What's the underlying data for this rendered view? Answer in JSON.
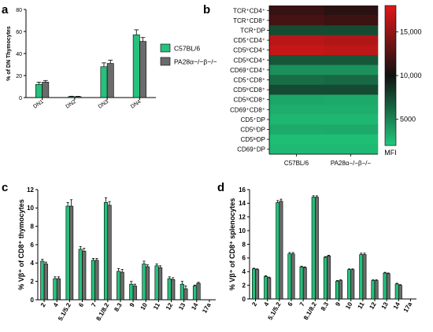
{
  "panels": {
    "a": "a",
    "b": "b",
    "c": "c",
    "d": "d"
  },
  "colors": {
    "c57": "#27c07c",
    "pa28": "#6b6b6b",
    "heat_low": "#1fc97c",
    "heat_mid": "#111111",
    "heat_high": "#e01818"
  },
  "chart_data": [
    {
      "id": "a",
      "type": "bar",
      "ylabel": "% of DN Thymocytes",
      "ylim": [
        0,
        80
      ],
      "yticks": [
        0,
        20,
        40,
        60,
        80
      ],
      "categories": [
        "DN1",
        "DN2",
        "DN3",
        "DN4"
      ],
      "series": [
        {
          "name": "C57BL/6",
          "values": [
            12,
            0.8,
            28,
            57
          ],
          "errors": [
            2,
            0.4,
            3.5,
            4.5
          ]
        },
        {
          "name": "PA28α−/−β−/−",
          "values": [
            14,
            0.8,
            31,
            51
          ],
          "errors": [
            1.5,
            0.3,
            3,
            3.5
          ]
        }
      ],
      "legend": "right"
    },
    {
      "id": "b",
      "type": "heatmap",
      "rows": [
        "TCR⁺CD4⁺",
        "TCR⁺CD8⁺",
        "TCR⁺DP",
        "CD5⁺CD4⁺",
        "CD5ʰⁱCD4⁺",
        "CD5ˡᵒCD4⁺",
        "CD69⁺CD4⁺",
        "CD5⁺CD8⁺",
        "CD5ʰⁱCD8⁺",
        "CD5ˡᵒCD8⁺",
        "CD69⁺CD8⁺",
        "CD5⁺DP",
        "CD5ʰⁱDP",
        "CD5ˡᵒDP",
        "CD69⁺DP"
      ],
      "columns": [
        "C57BL/6",
        "PA28α−/−β−/−"
      ],
      "values": [
        [
          11500,
          11000
        ],
        [
          12000,
          11700
        ],
        [
          7500,
          7500
        ],
        [
          16500,
          16200
        ],
        [
          17000,
          16700
        ],
        [
          7000,
          7000
        ],
        [
          4500,
          4500
        ],
        [
          6000,
          6200
        ],
        [
          7500,
          7500
        ],
        [
          3500,
          3400
        ],
        [
          3200,
          3200
        ],
        [
          2800,
          2800
        ],
        [
          3300,
          3400
        ],
        [
          2500,
          2500
        ],
        [
          2700,
          2700
        ]
      ],
      "colorbar": {
        "min": 2000,
        "max": 18000,
        "ticks": [
          5000,
          10000,
          15000
        ],
        "tick_labels": [
          "5000",
          "10,000",
          "15,000"
        ],
        "label": "MFI"
      }
    },
    {
      "id": "c",
      "type": "bar",
      "ylabel": "% Vβ⁺ of CD8⁺ thymocytes",
      "ylim": [
        0,
        12
      ],
      "yticks": [
        0,
        2,
        4,
        6,
        8,
        10,
        12
      ],
      "categories": [
        "2",
        "4",
        "5.1/5.2",
        "6",
        "7",
        "8.1/8.2",
        "8.3",
        "9",
        "10",
        "11",
        "12",
        "13",
        "14",
        "17a"
      ],
      "series": [
        {
          "name": "C57BL/6",
          "values": [
            4.2,
            2.3,
            10.2,
            5.5,
            4.3,
            10.6,
            3.1,
            1.7,
            3.9,
            3.7,
            2.3,
            1.7,
            1.5,
            0
          ],
          "errors": [
            0.2,
            0.2,
            0.4,
            0.3,
            0.2,
            0.5,
            0.3,
            0.3,
            0.3,
            0.2,
            0.2,
            0.3,
            0.1,
            0
          ]
        },
        {
          "name": "PA28α−/−β−/−",
          "values": [
            3.9,
            2.3,
            10.2,
            5.3,
            4.3,
            10.3,
            3.0,
            1.5,
            3.6,
            3.5,
            2.2,
            1.2,
            1.8,
            0
          ],
          "errors": [
            0.2,
            0.2,
            0.7,
            0.3,
            0.2,
            0.4,
            0.3,
            0.2,
            0.2,
            0.2,
            0.2,
            0.3,
            0.1,
            0
          ]
        }
      ]
    },
    {
      "id": "d",
      "type": "bar",
      "ylabel": "% Vβ⁺ of CD8⁺ splenocytes",
      "ylim": [
        0,
        16
      ],
      "yticks": [
        0,
        2,
        4,
        6,
        8,
        10,
        12,
        14,
        16
      ],
      "categories": [
        "2",
        "4",
        "5.1/5.2",
        "6",
        "7",
        "8.1/8.2",
        "8.3",
        "9",
        "10",
        "11",
        "12",
        "13",
        "14",
        "17a"
      ],
      "series": [
        {
          "name": "C57BL/6",
          "values": [
            4.4,
            3.3,
            14.1,
            6.6,
            4.7,
            14.9,
            6.1,
            2.6,
            4.3,
            6.5,
            2.7,
            3.8,
            2.2,
            0
          ],
          "errors": [
            0.1,
            0.1,
            0.3,
            0.2,
            0.1,
            0.2,
            0.1,
            0.1,
            0.1,
            0.2,
            0.1,
            0.1,
            0.1,
            0
          ]
        },
        {
          "name": "PA28α−/−β−/−",
          "values": [
            4.3,
            3.1,
            14.3,
            6.6,
            4.6,
            14.9,
            6.3,
            2.7,
            4.3,
            6.5,
            2.7,
            3.7,
            2.0,
            0
          ],
          "errors": [
            0.1,
            0.1,
            0.3,
            0.2,
            0.1,
            0.2,
            0.1,
            0.1,
            0.1,
            0.2,
            0.1,
            0.1,
            0.1,
            0
          ]
        }
      ]
    }
  ]
}
